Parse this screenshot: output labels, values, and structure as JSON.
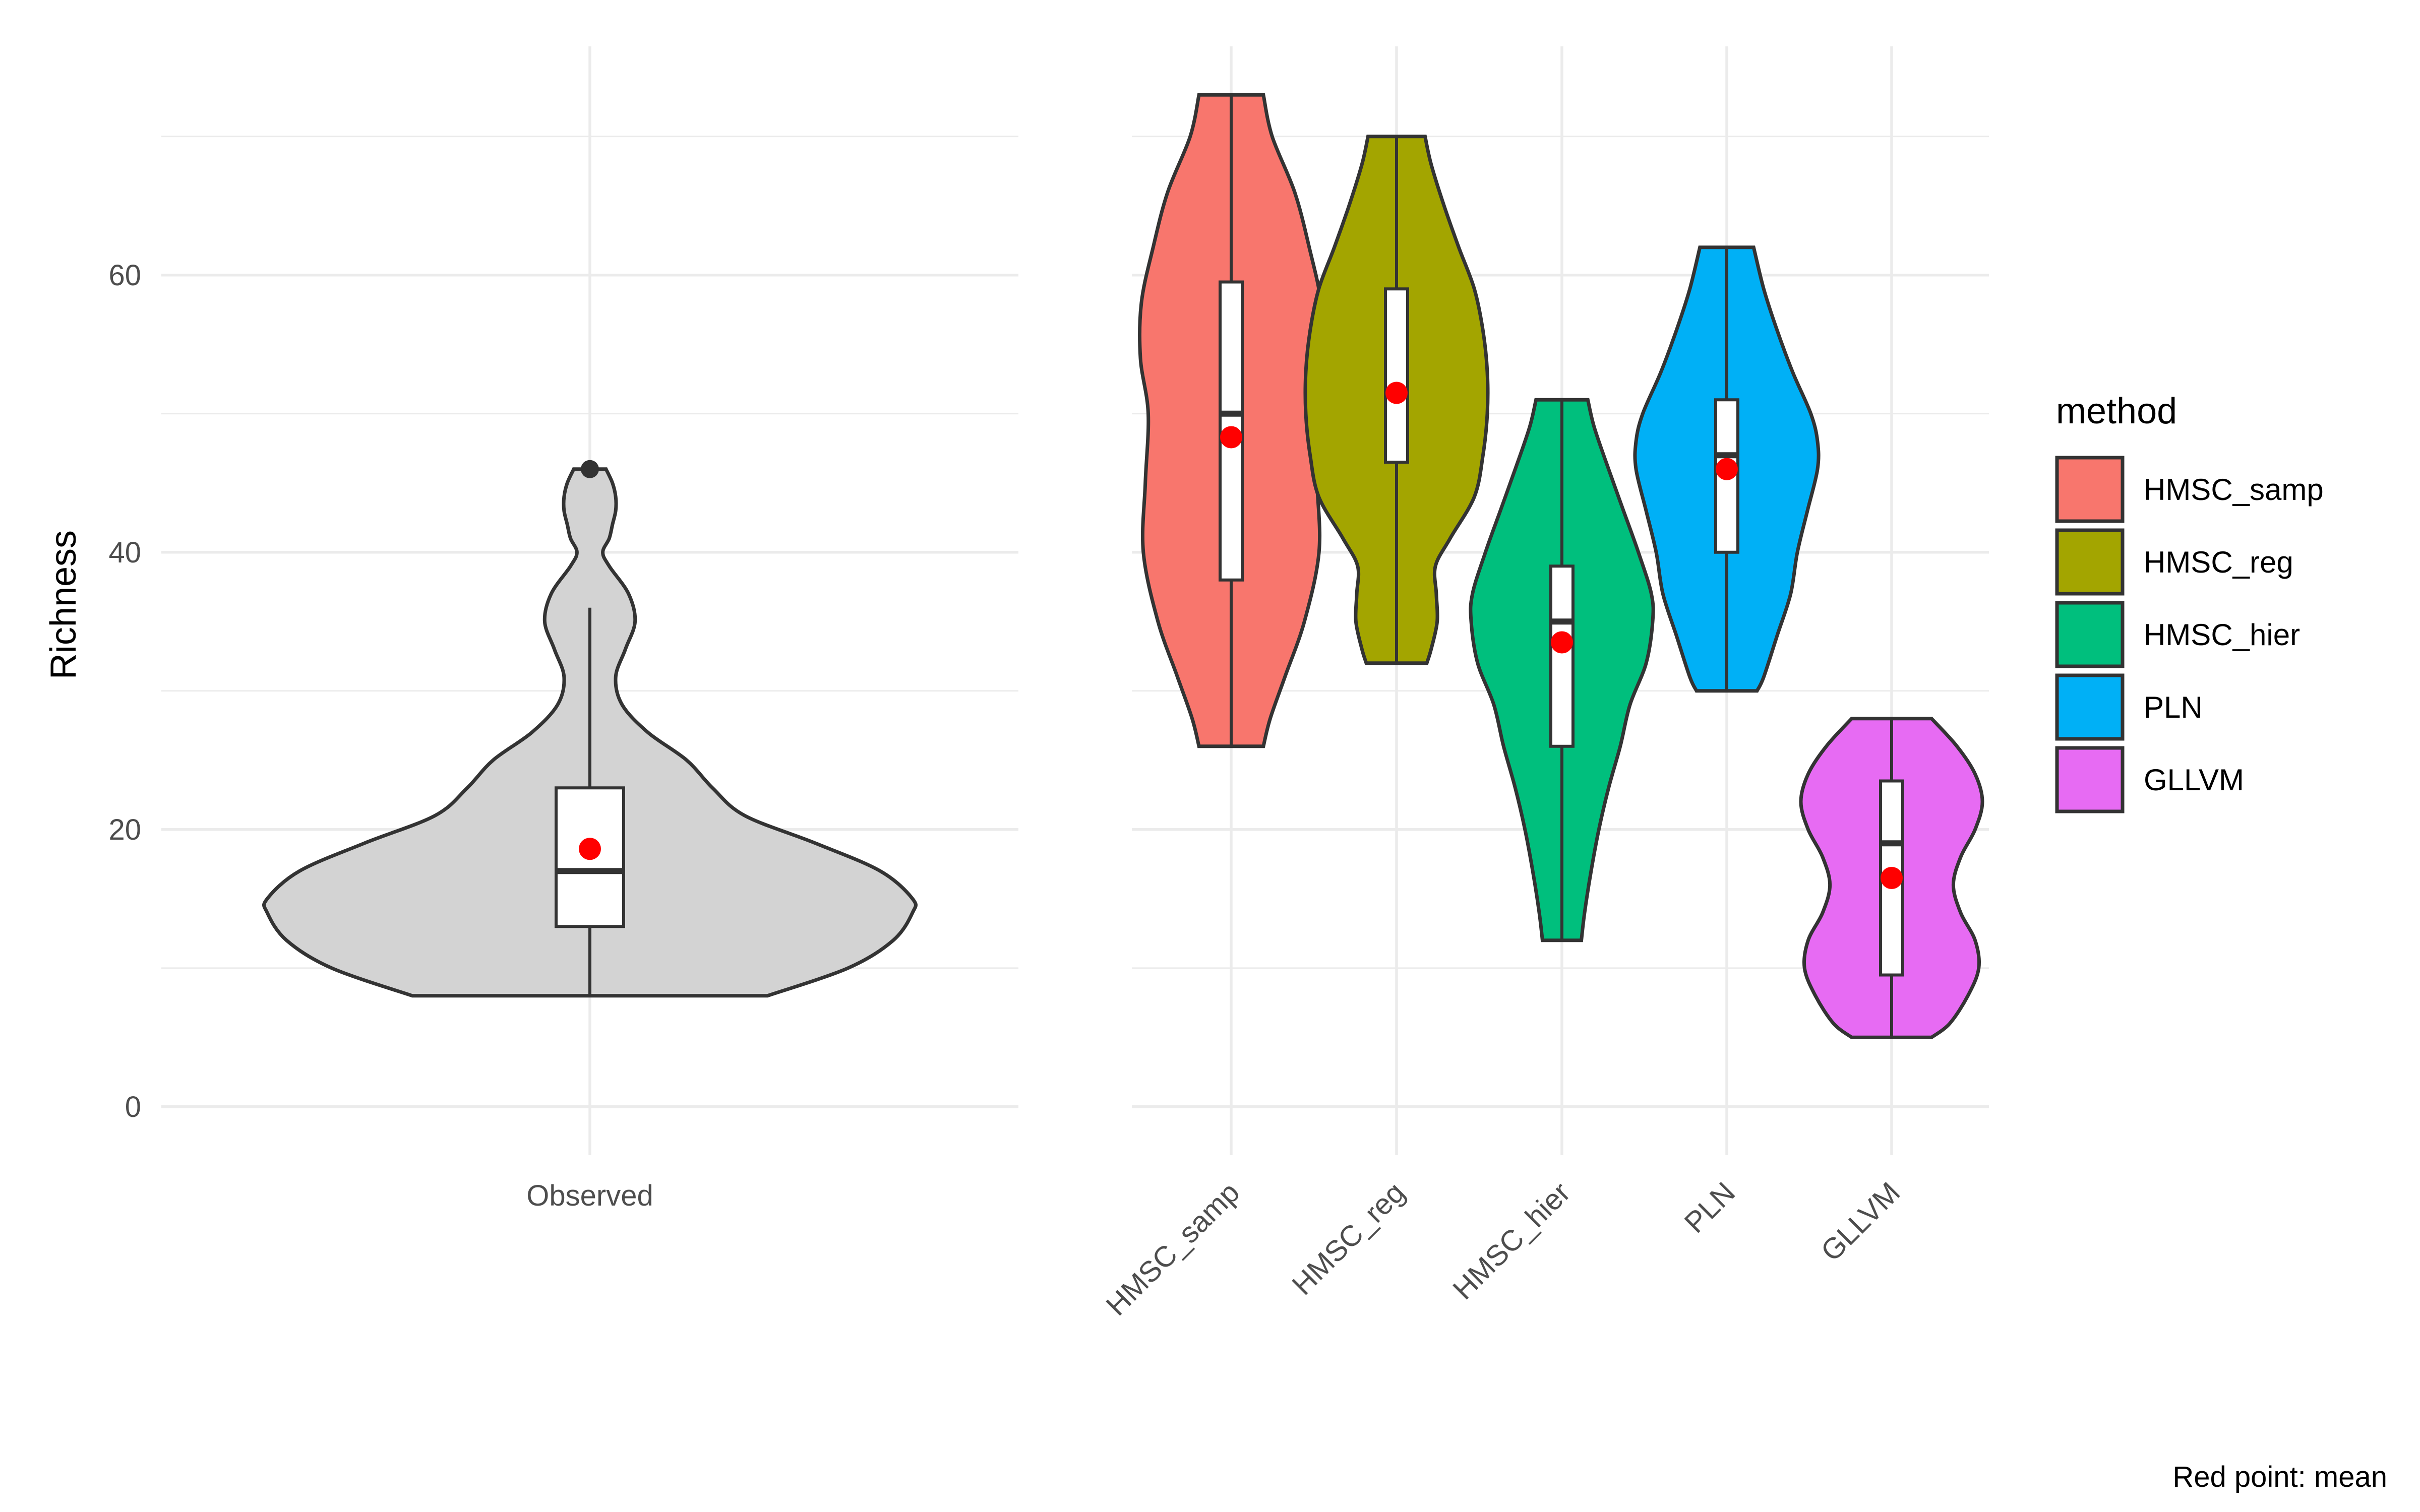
{
  "figure": {
    "ylabel": "Richness",
    "caption": "Red point: mean",
    "legend_title": "method"
  },
  "chart_data": [
    {
      "type": "violin",
      "panel": "left",
      "title": "",
      "xlabel": "",
      "ylabel": "Richness",
      "ylim": [
        -3.5,
        76.5
      ],
      "yticks": [
        0,
        20,
        40,
        60
      ],
      "grid": true,
      "categories": [
        "Observed"
      ],
      "series": [
        {
          "category": "Observed",
          "fill": "#d3d3d3",
          "violin": {
            "y": [
              8,
              10,
              12,
              14,
              15,
              17,
              19,
              21,
              23,
              25,
              27,
              29,
              31,
              33,
              35,
              37,
              39,
              40,
              41,
              42,
              43,
              44,
              45,
              46
            ],
            "w": [
              0.55,
              0.8,
              0.94,
              1.0,
              1.0,
              0.9,
              0.7,
              0.48,
              0.38,
              0.3,
              0.18,
              0.1,
              0.08,
              0.11,
              0.14,
              0.12,
              0.06,
              0.04,
              0.06,
              0.07,
              0.08,
              0.08,
              0.07,
              0.05
            ]
          },
          "box": {
            "min": 8,
            "q1": 13,
            "median": 17,
            "q3": 23,
            "max": 36
          },
          "mean": 18.6,
          "outliers": [
            46
          ]
        }
      ]
    },
    {
      "type": "violin",
      "panel": "right",
      "title": "",
      "xlabel": "",
      "ylim": [
        -3.5,
        76.5
      ],
      "grid": true,
      "categories": [
        "HMSC_samp",
        "HMSC_reg",
        "HMSC_hier",
        "PLN",
        "GLLVM"
      ],
      "series": [
        {
          "name": "HMSC_samp",
          "fill": "#F8766D",
          "violin": {
            "y": [
              26,
              28,
              31,
              35,
              40,
              45,
              50,
              54,
              58,
              62,
              66,
              70,
              73
            ],
            "w": [
              0.33,
              0.4,
              0.55,
              0.75,
              0.9,
              0.88,
              0.85,
              0.93,
              0.92,
              0.8,
              0.65,
              0.42,
              0.33
            ]
          },
          "box": {
            "min": 26,
            "q1": 38,
            "median": 50,
            "q3": 59.5,
            "max": 73
          },
          "mean": 48.3,
          "outliers": []
        },
        {
          "name": "HMSC_reg",
          "fill": "#A3A500",
          "violin": {
            "y": [
              32,
              33,
              35,
              37,
              39,
              41,
              44,
              47,
              50,
              53,
              56,
              59,
              62,
              65,
              68,
              70
            ],
            "w": [
              0.35,
              0.4,
              0.47,
              0.46,
              0.45,
              0.62,
              0.9,
              1.0,
              1.05,
              1.05,
              1.0,
              0.9,
              0.72,
              0.55,
              0.4,
              0.33
            ]
          },
          "box": {
            "min": 32,
            "q1": 46.5,
            "median": 51.5,
            "q3": 59,
            "max": 70
          },
          "mean": 51.5,
          "outliers": []
        },
        {
          "name": "HMSC_hier",
          "fill": "#00BF7D",
          "violin": {
            "y": [
              12,
              14,
              17,
              20,
              23,
              26,
              29,
              32,
              35,
              37,
              40,
              43,
              46,
              49,
              51
            ],
            "w": [
              0.3,
              0.35,
              0.45,
              0.57,
              0.72,
              0.9,
              1.05,
              1.3,
              1.4,
              1.38,
              1.18,
              0.95,
              0.72,
              0.5,
              0.4
            ]
          },
          "box": {
            "min": 12,
            "q1": 26,
            "median": 35,
            "q3": 39,
            "max": 51
          },
          "mean": 33.5,
          "outliers": []
        },
        {
          "name": "PLN",
          "fill": "#00B0F6",
          "violin": {
            "y": [
              30,
              31,
              34,
              37,
              40,
              43,
              46,
              48,
              50,
              53,
              56,
              59,
              62
            ],
            "w": [
              0.45,
              0.55,
              0.75,
              0.95,
              1.05,
              1.2,
              1.35,
              1.35,
              1.25,
              0.98,
              0.75,
              0.55,
              0.4
            ]
          },
          "box": {
            "min": 30,
            "q1": 40,
            "median": 47,
            "q3": 51,
            "max": 62
          },
          "mean": 46,
          "outliers": []
        },
        {
          "name": "GLLVM",
          "fill": "#E76BF3",
          "violin": {
            "y": [
              5,
              6,
              8,
              10,
              12,
              14,
              16,
              18,
              20,
              22,
              24,
              26,
              28
            ],
            "w": [
              0.55,
              0.8,
              1.05,
              1.2,
              1.15,
              0.95,
              0.85,
              0.95,
              1.15,
              1.25,
              1.15,
              0.9,
              0.55
            ]
          },
          "box": {
            "min": 5,
            "q1": 9.5,
            "median": 19,
            "q3": 23.5,
            "max": 28
          },
          "mean": 16.5,
          "outliers": []
        }
      ],
      "legend": {
        "title": "method",
        "placement": "right",
        "entries": [
          "HMSC_samp",
          "HMSC_reg",
          "HMSC_hier",
          "PLN",
          "GLLVM"
        ]
      }
    }
  ]
}
